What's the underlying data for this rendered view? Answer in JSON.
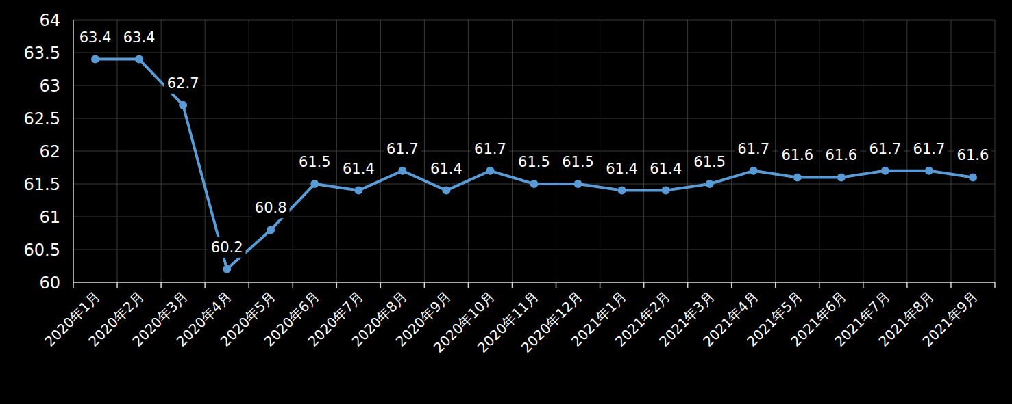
{
  "chart_data": {
    "type": "line",
    "categories": [
      "2020年1月",
      "2020年2月",
      "2020年3月",
      "2020年4月",
      "2020年5月",
      "2020年6月",
      "2020年7月",
      "2020年8月",
      "2020年9月",
      "2020年10月",
      "2020年11月",
      "2020年12月",
      "2021年1月",
      "2021年2月",
      "2021年3月",
      "2021年4月",
      "2021年5月",
      "2021年6月",
      "2021年7月",
      "2021年8月",
      "2021年9月"
    ],
    "values": [
      63.4,
      63.4,
      62.7,
      60.2,
      60.8,
      61.5,
      61.4,
      61.7,
      61.4,
      61.7,
      61.5,
      61.5,
      61.4,
      61.4,
      61.5,
      61.7,
      61.6,
      61.6,
      61.7,
      61.7,
      61.6
    ],
    "color": "#5b9bd5",
    "marker": "circle",
    "ylim": [
      60,
      64
    ],
    "yticks": [
      60,
      60.5,
      61,
      61.5,
      62,
      62.5,
      63,
      63.5,
      64
    ],
    "grid": true,
    "data_labels": true
  }
}
